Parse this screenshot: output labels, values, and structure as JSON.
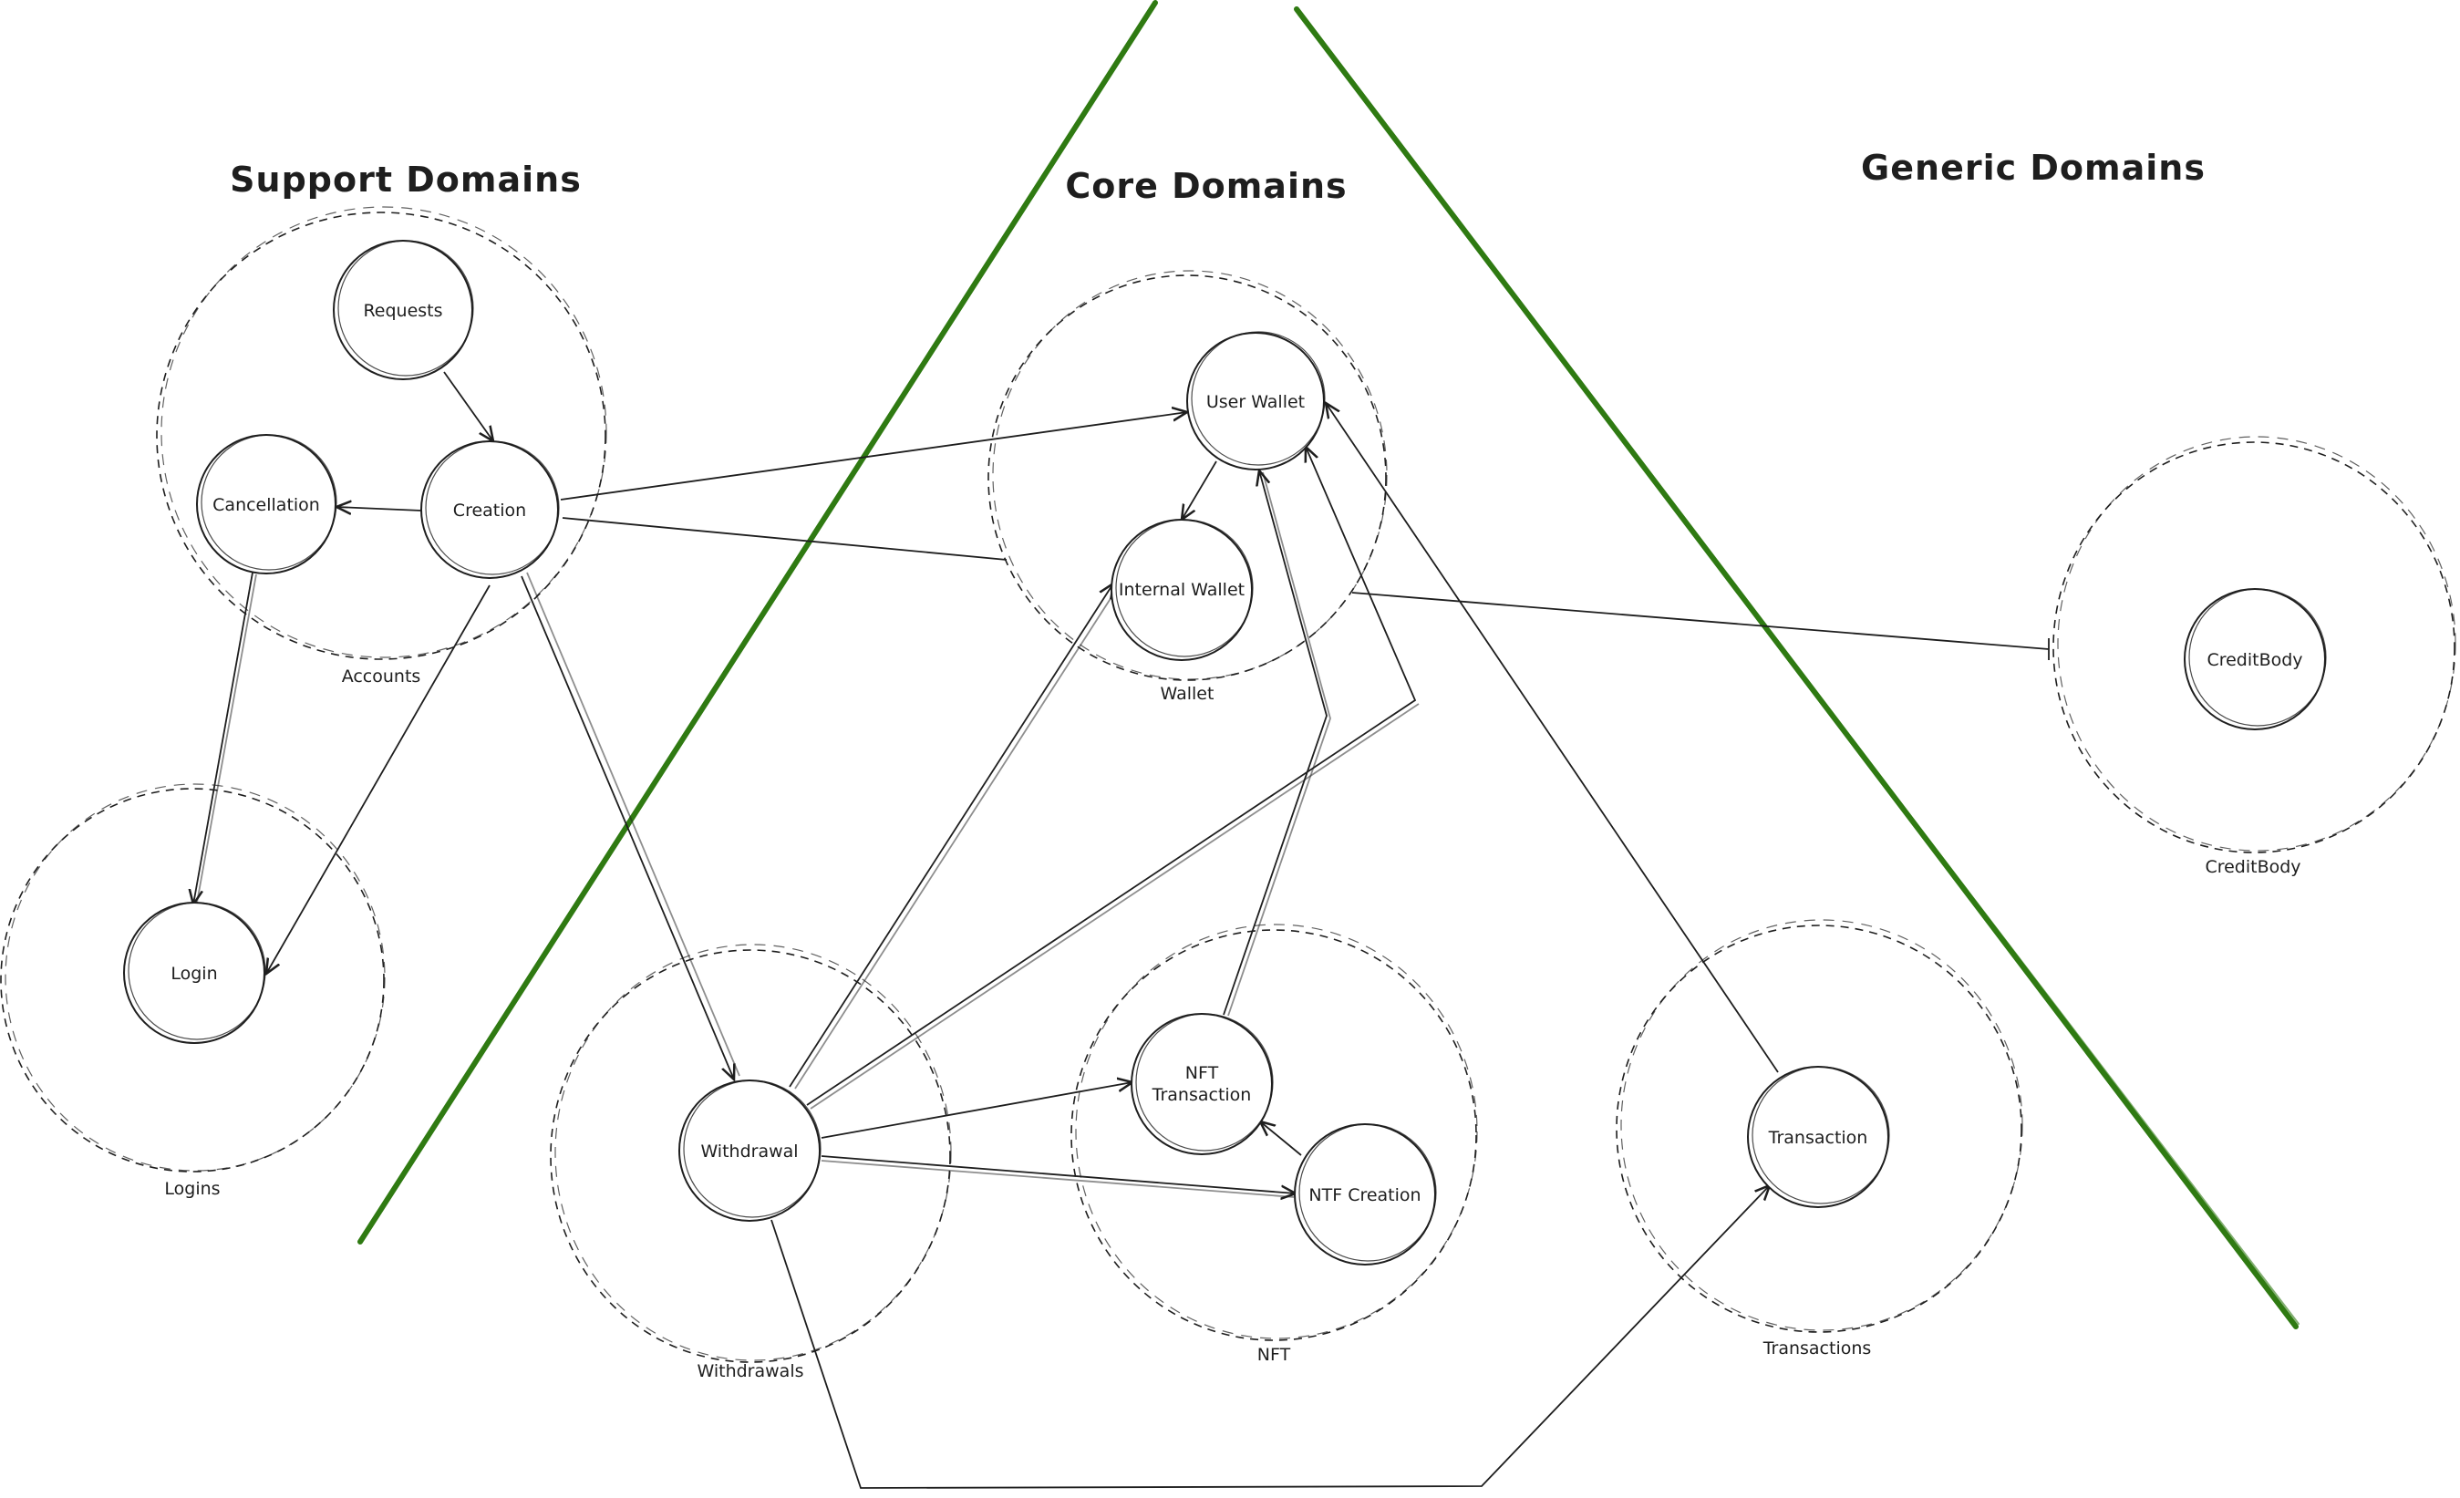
{
  "colors": {
    "divider": "#2f7a12",
    "ink": "#1e1e1e",
    "background": "#ffffff"
  },
  "headings": {
    "support": "Support Domains",
    "core": "Core Domains",
    "generic": "Generic Domains"
  },
  "domains": {
    "accounts": "Accounts",
    "logins": "Logins",
    "wallet": "Wallet",
    "withdrawals": "Withdrawals",
    "nft": "NFT",
    "transactions": "Transactions",
    "creditbody": "CreditBody"
  },
  "nodes": {
    "requests": "Requests",
    "cancellation": "Cancellation",
    "creation": "Creation",
    "login": "Login",
    "user_wallet": "User Wallet",
    "internal_wallet": "Internal Wallet",
    "withdrawal": "Withdrawal",
    "nft_transaction_line1": "NFT",
    "nft_transaction_line2": "Transaction",
    "ntf_creation": "NTF Creation",
    "transaction": "Transaction",
    "creditbody": "CreditBody"
  },
  "edges": [
    {
      "from": "Requests",
      "to": "Creation"
    },
    {
      "from": "Creation",
      "to": "Cancellation"
    },
    {
      "from": "Cancellation",
      "to": "Login"
    },
    {
      "from": "Creation",
      "to": "Login"
    },
    {
      "from": "Creation",
      "to": "User Wallet"
    },
    {
      "from": "Creation",
      "to": "Wallet"
    },
    {
      "from": "Creation",
      "to": "Withdrawal"
    },
    {
      "from": "User Wallet",
      "to": "Internal Wallet"
    },
    {
      "from": "Withdrawal",
      "to": "Internal Wallet"
    },
    {
      "from": "Withdrawal",
      "to": "User Wallet"
    },
    {
      "from": "Withdrawal",
      "to": "NFT Transaction"
    },
    {
      "from": "Withdrawal",
      "to": "NTF Creation"
    },
    {
      "from": "Withdrawal",
      "to": "Transaction"
    },
    {
      "from": "NTF Creation",
      "to": "NFT Transaction"
    },
    {
      "from": "NFT Transaction",
      "to": "User Wallet"
    },
    {
      "from": "Transaction",
      "to": "User Wallet"
    },
    {
      "from": "Wallet",
      "to": "CreditBody"
    }
  ]
}
